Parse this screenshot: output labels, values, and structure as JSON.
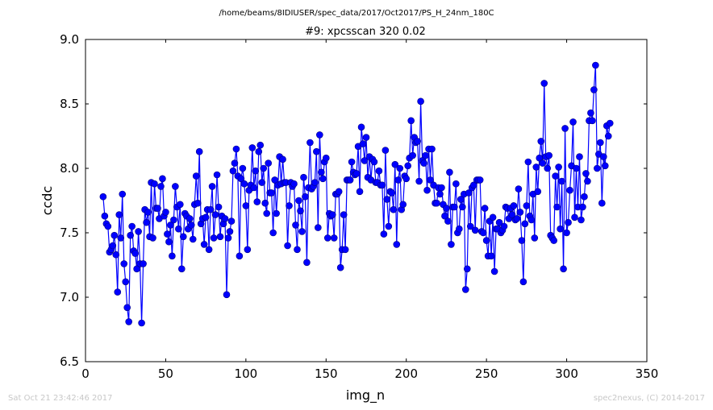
{
  "suptitle": "/home/beams/8IDIUSER/spec_data/2017/Oct2017/PS_H_24nm_180C",
  "footer": {
    "timestamp": "Sat Oct 21 23:42:46 2017",
    "credit": "spec2nexus, (C) 2014-2017"
  },
  "colors": {
    "series": "#0000ff",
    "marker_edge": "#000080"
  },
  "chart_data": {
    "type": "line",
    "title": "#9: xpcsscan 320 0.02",
    "xlabel": "img_n",
    "ylabel": "ccdc",
    "xlim": [
      0,
      350
    ],
    "ylim": [
      6.5,
      9.0
    ],
    "xticks": [
      "0",
      "50",
      "100",
      "150",
      "200",
      "250",
      "300",
      "350"
    ],
    "yticks": [
      "6.5",
      "7.0",
      "7.5",
      "8.0",
      "8.5",
      "9.0"
    ],
    "grid": false,
    "x_start": 11,
    "x_step": 1,
    "series": [
      {
        "values": [
          7.78,
          7.63,
          7.57,
          7.55,
          7.35,
          7.37,
          7.4,
          7.48,
          7.33,
          7.04,
          7.64,
          7.46,
          7.8,
          7.26,
          7.12,
          6.92,
          6.81,
          7.48,
          7.55,
          7.36,
          7.34,
          7.22,
          7.51,
          7.26,
          6.8,
          7.26,
          7.68,
          7.58,
          7.66,
          7.47,
          7.89,
          7.46,
          7.88,
          7.69,
          7.69,
          7.61,
          7.86,
          7.92,
          7.63,
          7.66,
          7.49,
          7.43,
          7.56,
          7.32,
          7.6,
          7.86,
          7.7,
          7.53,
          7.72,
          7.22,
          7.47,
          7.65,
          7.63,
          7.53,
          7.61,
          7.56,
          7.45,
          7.72,
          7.94,
          7.73,
          8.13,
          7.57,
          7.61,
          7.41,
          7.62,
          7.68,
          7.37,
          7.68,
          7.86,
          7.46,
          7.64,
          7.95,
          7.7,
          7.47,
          7.63,
          7.57,
          7.61,
          7.02,
          7.46,
          7.51,
          7.59,
          7.98,
          8.04,
          8.15,
          7.94,
          7.32,
          7.92,
          8.0,
          7.88,
          7.71,
          7.37,
          7.83,
          7.87,
          8.16,
          7.85,
          7.98,
          7.74,
          8.13,
          8.18,
          7.89,
          8.0,
          7.73,
          7.65,
          8.04,
          7.81,
          7.81,
          7.5,
          7.91,
          7.65,
          7.87,
          8.09,
          7.88,
          8.07,
          7.89,
          7.89,
          7.4,
          7.71,
          7.89,
          7.86,
          7.88,
          7.56,
          7.37,
          7.75,
          7.67,
          7.51,
          7.93,
          7.78,
          7.27,
          7.85,
          8.2,
          7.84,
          7.86,
          7.89,
          8.13,
          7.54,
          8.26,
          7.97,
          7.92,
          8.05,
          8.08,
          7.46,
          7.65,
          7.63,
          7.64,
          7.46,
          7.8,
          7.8,
          7.82,
          7.23,
          7.37,
          7.64,
          7.37,
          7.91,
          7.91,
          7.91,
          8.05,
          7.97,
          7.95,
          7.96,
          8.17,
          7.82,
          8.32,
          8.19,
          8.06,
          8.24,
          7.93,
          8.09,
          7.91,
          8.07,
          8.05,
          7.89,
          7.89,
          7.98,
          7.87,
          7.87,
          7.49,
          8.14,
          7.76,
          7.55,
          7.82,
          7.81,
          7.68,
          8.03,
          7.41,
          7.91,
          8.0,
          7.68,
          7.72,
          7.94,
          7.92,
          8.02,
          8.08,
          8.37,
          8.1,
          8.24,
          8.2,
          8.21,
          7.9,
          8.52,
          8.06,
          8.04,
          8.1,
          7.83,
          8.15,
          7.91,
          8.15,
          7.87,
          7.73,
          7.73,
          7.85,
          7.8,
          7.85,
          7.72,
          7.63,
          7.69,
          7.59,
          7.97,
          7.41,
          7.7,
          7.7,
          7.88,
          7.5,
          7.53,
          7.76,
          7.7,
          7.8,
          7.06,
          7.22,
          7.81,
          7.55,
          7.85,
          7.87,
          7.52,
          7.91,
          7.91,
          7.91,
          7.51,
          7.5,
          7.69,
          7.44,
          7.32,
          7.59,
          7.32,
          7.62,
          7.2,
          7.53,
          7.53,
          7.58,
          7.5,
          7.52,
          7.55,
          7.7,
          7.69,
          7.61,
          7.69,
          7.64,
          7.71,
          7.6,
          7.61,
          7.84,
          7.66,
          7.44,
          7.12,
          7.57,
          7.71,
          8.05,
          7.63,
          7.6,
          7.8,
          7.46,
          8.01,
          7.82,
          8.08,
          8.21,
          8.04,
          8.66,
          8.09,
          8.0,
          8.1,
          7.48,
          7.46,
          7.44,
          7.94,
          7.7,
          8.01,
          7.53,
          7.9,
          7.22,
          8.31,
          7.5,
          7.58,
          7.83,
          8.02,
          8.36,
          7.62,
          8.0,
          7.7,
          8.09,
          7.6,
          7.7,
          7.78,
          7.96,
          7.9,
          8.37,
          8.43,
          8.37,
          8.61,
          8.8,
          8.0,
          8.11,
          8.2,
          7.73,
          8.09,
          8.02,
          8.33,
          8.25,
          8.35
        ]
      }
    ]
  }
}
